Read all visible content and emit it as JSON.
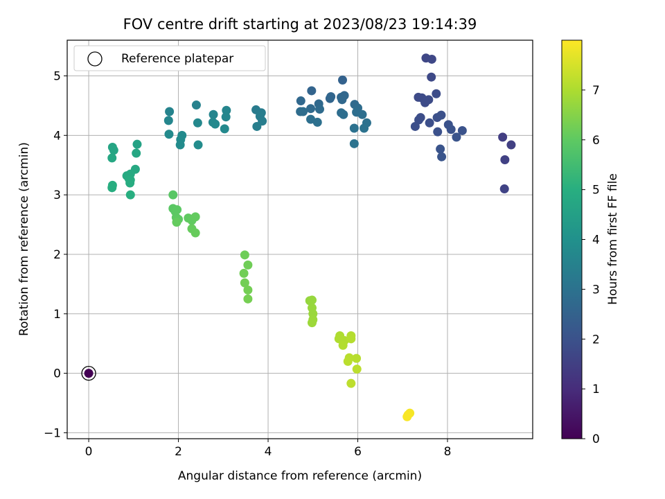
{
  "chart_data": {
    "type": "scatter",
    "title": "FOV centre drift starting at 2023/08/23 19:14:39",
    "xlabel": "Angular distance from reference (arcmin)",
    "ylabel": "Rotation from reference (arcmin)",
    "xlim": [
      -0.48,
      9.9
    ],
    "ylim": [
      -1.1,
      5.6
    ],
    "xticks": [
      0,
      2,
      4,
      6,
      8
    ],
    "yticks": [
      -1,
      0,
      1,
      2,
      3,
      4,
      5
    ],
    "grid": true,
    "legend": {
      "placement": "top-left",
      "label": "Reference platepar"
    },
    "reference_point": {
      "x": 0,
      "y": 0,
      "hours": 0
    },
    "colorbar": {
      "label": "Hours from first FF file",
      "range": [
        0,
        8
      ],
      "ticks": [
        0,
        1,
        2,
        3,
        4,
        5,
        6,
        7
      ],
      "colormap": "viridis"
    },
    "points": [
      {
        "x": 0.0,
        "y": 0.0,
        "h": 0.0
      },
      {
        "x": 9.23,
        "y": 3.97,
        "h": 1.45
      },
      {
        "x": 9.42,
        "y": 3.84,
        "h": 1.5
      },
      {
        "x": 9.28,
        "y": 3.59,
        "h": 1.55
      },
      {
        "x": 9.27,
        "y": 3.1,
        "h": 1.6
      },
      {
        "x": 7.52,
        "y": 5.3,
        "h": 1.7
      },
      {
        "x": 7.65,
        "y": 5.28,
        "h": 1.72
      },
      {
        "x": 7.64,
        "y": 4.98,
        "h": 1.75
      },
      {
        "x": 7.35,
        "y": 4.64,
        "h": 1.8
      },
      {
        "x": 7.43,
        "y": 4.63,
        "h": 1.82
      },
      {
        "x": 7.58,
        "y": 4.6,
        "h": 1.83
      },
      {
        "x": 7.5,
        "y": 4.55,
        "h": 1.85
      },
      {
        "x": 7.75,
        "y": 4.7,
        "h": 1.86
      },
      {
        "x": 7.4,
        "y": 4.3,
        "h": 1.88
      },
      {
        "x": 7.36,
        "y": 4.26,
        "h": 1.9
      },
      {
        "x": 7.28,
        "y": 4.15,
        "h": 1.92
      },
      {
        "x": 7.6,
        "y": 4.21,
        "h": 1.93
      },
      {
        "x": 7.77,
        "y": 4.3,
        "h": 1.95
      },
      {
        "x": 7.86,
        "y": 4.34,
        "h": 1.96
      },
      {
        "x": 7.78,
        "y": 4.06,
        "h": 1.98
      },
      {
        "x": 8.02,
        "y": 4.18,
        "h": 2.0
      },
      {
        "x": 8.08,
        "y": 4.1,
        "h": 2.02
      },
      {
        "x": 8.33,
        "y": 4.08,
        "h": 2.03
      },
      {
        "x": 8.2,
        "y": 3.97,
        "h": 2.05
      },
      {
        "x": 7.84,
        "y": 3.77,
        "h": 2.07
      },
      {
        "x": 7.87,
        "y": 3.64,
        "h": 2.08
      },
      {
        "x": 5.66,
        "y": 4.93,
        "h": 2.5
      },
      {
        "x": 4.97,
        "y": 4.75,
        "h": 2.55
      },
      {
        "x": 5.38,
        "y": 4.62,
        "h": 2.6
      },
      {
        "x": 5.4,
        "y": 4.65,
        "h": 2.62
      },
      {
        "x": 5.63,
        "y": 4.64,
        "h": 2.65
      },
      {
        "x": 5.7,
        "y": 4.67,
        "h": 2.66
      },
      {
        "x": 5.65,
        "y": 4.6,
        "h": 2.68
      },
      {
        "x": 4.73,
        "y": 4.58,
        "h": 2.7
      },
      {
        "x": 5.13,
        "y": 4.53,
        "h": 2.72
      },
      {
        "x": 5.93,
        "y": 4.52,
        "h": 2.74
      },
      {
        "x": 4.95,
        "y": 4.45,
        "h": 2.76
      },
      {
        "x": 5.15,
        "y": 4.44,
        "h": 2.78
      },
      {
        "x": 6.0,
        "y": 4.46,
        "h": 2.8
      },
      {
        "x": 4.72,
        "y": 4.4,
        "h": 2.82
      },
      {
        "x": 4.78,
        "y": 4.4,
        "h": 2.83
      },
      {
        "x": 5.63,
        "y": 4.38,
        "h": 2.85
      },
      {
        "x": 5.68,
        "y": 4.35,
        "h": 2.86
      },
      {
        "x": 5.97,
        "y": 4.39,
        "h": 2.88
      },
      {
        "x": 6.1,
        "y": 4.35,
        "h": 2.9
      },
      {
        "x": 4.95,
        "y": 4.27,
        "h": 2.92
      },
      {
        "x": 5.1,
        "y": 4.22,
        "h": 2.94
      },
      {
        "x": 6.2,
        "y": 4.21,
        "h": 2.96
      },
      {
        "x": 5.92,
        "y": 4.12,
        "h": 2.98
      },
      {
        "x": 6.14,
        "y": 4.12,
        "h": 3.0
      },
      {
        "x": 5.92,
        "y": 3.86,
        "h": 3.02
      },
      {
        "x": 3.73,
        "y": 4.43,
        "h": 3.3
      },
      {
        "x": 3.85,
        "y": 4.38,
        "h": 3.32
      },
      {
        "x": 3.82,
        "y": 4.32,
        "h": 3.34
      },
      {
        "x": 3.87,
        "y": 4.24,
        "h": 3.36
      },
      {
        "x": 3.75,
        "y": 4.15,
        "h": 3.38
      },
      {
        "x": 2.4,
        "y": 4.51,
        "h": 3.5
      },
      {
        "x": 1.8,
        "y": 4.4,
        "h": 3.55
      },
      {
        "x": 3.07,
        "y": 4.42,
        "h": 3.6
      },
      {
        "x": 2.78,
        "y": 4.35,
        "h": 3.62
      },
      {
        "x": 3.06,
        "y": 4.31,
        "h": 3.64
      },
      {
        "x": 1.78,
        "y": 4.25,
        "h": 3.66
      },
      {
        "x": 2.77,
        "y": 4.22,
        "h": 3.68
      },
      {
        "x": 2.43,
        "y": 4.21,
        "h": 3.7
      },
      {
        "x": 2.82,
        "y": 4.19,
        "h": 3.72
      },
      {
        "x": 3.03,
        "y": 4.11,
        "h": 3.74
      },
      {
        "x": 1.79,
        "y": 4.02,
        "h": 3.76
      },
      {
        "x": 2.08,
        "y": 4.0,
        "h": 3.78
      },
      {
        "x": 2.05,
        "y": 3.93,
        "h": 3.8
      },
      {
        "x": 2.04,
        "y": 3.84,
        "h": 3.82
      },
      {
        "x": 2.44,
        "y": 3.84,
        "h": 3.84
      },
      {
        "x": 1.08,
        "y": 3.85,
        "h": 4.6
      },
      {
        "x": 0.53,
        "y": 3.8,
        "h": 4.65
      },
      {
        "x": 0.56,
        "y": 3.75,
        "h": 4.7
      },
      {
        "x": 1.06,
        "y": 3.7,
        "h": 4.72
      },
      {
        "x": 0.52,
        "y": 3.62,
        "h": 4.75
      },
      {
        "x": 1.04,
        "y": 3.43,
        "h": 4.8
      },
      {
        "x": 0.85,
        "y": 3.32,
        "h": 4.85
      },
      {
        "x": 0.93,
        "y": 3.35,
        "h": 4.87
      },
      {
        "x": 0.9,
        "y": 3.27,
        "h": 4.9
      },
      {
        "x": 0.93,
        "y": 3.25,
        "h": 4.92
      },
      {
        "x": 0.92,
        "y": 3.2,
        "h": 4.94
      },
      {
        "x": 0.53,
        "y": 3.16,
        "h": 4.96
      },
      {
        "x": 0.52,
        "y": 3.12,
        "h": 4.98
      },
      {
        "x": 0.93,
        "y": 3.0,
        "h": 5.0
      },
      {
        "x": 1.88,
        "y": 3.0,
        "h": 5.9
      },
      {
        "x": 1.88,
        "y": 2.77,
        "h": 5.92
      },
      {
        "x": 1.93,
        "y": 2.72,
        "h": 5.94
      },
      {
        "x": 1.97,
        "y": 2.75,
        "h": 5.96
      },
      {
        "x": 1.95,
        "y": 2.62,
        "h": 5.98
      },
      {
        "x": 2.0,
        "y": 2.59,
        "h": 6.0
      },
      {
        "x": 2.22,
        "y": 2.61,
        "h": 6.02
      },
      {
        "x": 2.3,
        "y": 2.57,
        "h": 6.04
      },
      {
        "x": 2.38,
        "y": 2.63,
        "h": 6.06
      },
      {
        "x": 1.96,
        "y": 2.54,
        "h": 6.08
      },
      {
        "x": 2.3,
        "y": 2.43,
        "h": 6.1
      },
      {
        "x": 2.38,
        "y": 2.36,
        "h": 6.12
      },
      {
        "x": 3.48,
        "y": 1.99,
        "h": 6.2
      },
      {
        "x": 3.55,
        "y": 1.82,
        "h": 6.22
      },
      {
        "x": 3.46,
        "y": 1.68,
        "h": 6.24
      },
      {
        "x": 3.48,
        "y": 1.52,
        "h": 6.26
      },
      {
        "x": 3.55,
        "y": 1.4,
        "h": 6.28
      },
      {
        "x": 3.55,
        "y": 1.25,
        "h": 6.3
      },
      {
        "x": 4.93,
        "y": 1.22,
        "h": 6.7
      },
      {
        "x": 4.98,
        "y": 1.23,
        "h": 6.72
      },
      {
        "x": 4.98,
        "y": 1.1,
        "h": 6.74
      },
      {
        "x": 5.0,
        "y": 1.0,
        "h": 6.76
      },
      {
        "x": 5.0,
        "y": 0.9,
        "h": 6.78
      },
      {
        "x": 4.98,
        "y": 0.85,
        "h": 6.8
      },
      {
        "x": 5.6,
        "y": 0.63,
        "h": 7.0
      },
      {
        "x": 5.58,
        "y": 0.58,
        "h": 7.02
      },
      {
        "x": 5.7,
        "y": 0.55,
        "h": 7.04
      },
      {
        "x": 5.67,
        "y": 0.47,
        "h": 7.06
      },
      {
        "x": 5.85,
        "y": 0.63,
        "h": 7.08
      },
      {
        "x": 5.85,
        "y": 0.58,
        "h": 7.1
      },
      {
        "x": 5.97,
        "y": 0.25,
        "h": 7.12
      },
      {
        "x": 5.81,
        "y": 0.26,
        "h": 7.14
      },
      {
        "x": 5.78,
        "y": 0.2,
        "h": 7.16
      },
      {
        "x": 5.98,
        "y": 0.07,
        "h": 7.18
      },
      {
        "x": 5.85,
        "y": -0.17,
        "h": 7.2
      },
      {
        "x": 7.16,
        "y": -0.67,
        "h": 7.9
      },
      {
        "x": 7.12,
        "y": -0.7,
        "h": 7.92
      },
      {
        "x": 7.1,
        "y": -0.73,
        "h": 7.94
      }
    ]
  }
}
